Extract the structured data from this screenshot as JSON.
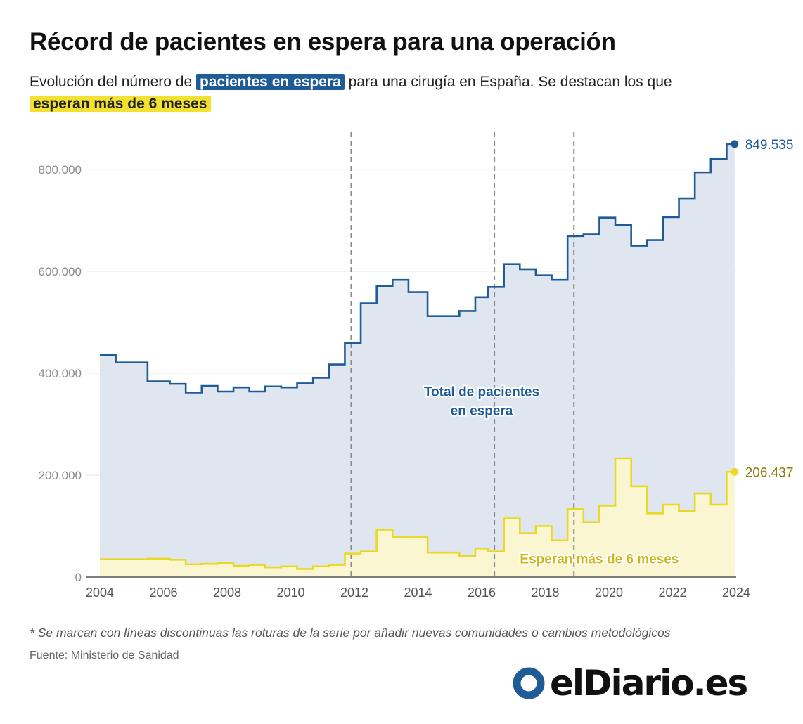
{
  "header": {
    "title": "Récord de pacientes en espera para una operación",
    "subtitle_pre": "Evolución del número de ",
    "subtitle_hl_blue": "pacientes en espera",
    "subtitle_mid": " para una cirugía en España. Se destacan los que ",
    "subtitle_hl_yellow": "esperan más de 6 meses"
  },
  "footer": {
    "footnote": "* Se marcan con líneas discontinuas las roturas de la serie por añadir nuevas comunidades o cambios metodológicos",
    "source": "Fuente: Ministerio de Sanidad",
    "logo_text": "elDiario.es"
  },
  "colors": {
    "blue": "#1f5c97",
    "blue_fill": "#dfe6f0",
    "yellow": "#ebd826",
    "yellow_fill": "#fbf6d2",
    "yellow_label": "#8a7d0a"
  },
  "chart_data": {
    "type": "area",
    "step": true,
    "title": "Récord de pacientes en espera para una operación",
    "xlim": [
      2004,
      2024
    ],
    "ylim": [
      0,
      870000
    ],
    "y_ticks": [
      0,
      200000,
      400000,
      600000,
      800000
    ],
    "y_tick_labels": [
      "0",
      "200.000",
      "400.000",
      "600.000",
      "800.000"
    ],
    "x_ticks": [
      2004,
      2006,
      2008,
      2010,
      2012,
      2014,
      2016,
      2018,
      2020,
      2022,
      2024
    ],
    "x_tick_labels": [
      "2004",
      "2006",
      "2008",
      "2010",
      "2012",
      "2014",
      "2016",
      "2018",
      "2020",
      "2022",
      "2024"
    ],
    "grid": "horizontal",
    "series_breaks": [
      2011.9,
      2016.4,
      2018.9
    ],
    "series": [
      {
        "name": "Total de pacientes en espera",
        "label_lines": [
          "Total de pacientes",
          "en espera"
        ],
        "label_at": [
          2016.0,
          355000
        ],
        "end_label": "849.535",
        "points": [
          [
            2004,
            436000
          ],
          [
            2004.5,
            421000
          ],
          [
            2005.5,
            384000
          ],
          [
            2006.2,
            379000
          ],
          [
            2006.7,
            362000
          ],
          [
            2007.2,
            375000
          ],
          [
            2007.7,
            364000
          ],
          [
            2008.2,
            372000
          ],
          [
            2008.7,
            364000
          ],
          [
            2009.2,
            374000
          ],
          [
            2009.7,
            372000
          ],
          [
            2010.2,
            380000
          ],
          [
            2010.7,
            391000
          ],
          [
            2011.2,
            417000
          ],
          [
            2011.7,
            459000
          ],
          [
            2012.2,
            537000
          ],
          [
            2012.7,
            571000
          ],
          [
            2013.2,
            583000
          ],
          [
            2013.7,
            559000
          ],
          [
            2014.3,
            512000
          ],
          [
            2015.3,
            522000
          ],
          [
            2015.8,
            549000
          ],
          [
            2016.2,
            569000
          ],
          [
            2016.7,
            614000
          ],
          [
            2017.2,
            604000
          ],
          [
            2017.7,
            592000
          ],
          [
            2018.2,
            583000
          ],
          [
            2018.7,
            669000
          ],
          [
            2019.2,
            672000
          ],
          [
            2019.7,
            705000
          ],
          [
            2020.2,
            691000
          ],
          [
            2020.7,
            650000
          ],
          [
            2021.2,
            661000
          ],
          [
            2021.7,
            706000
          ],
          [
            2022.2,
            743000
          ],
          [
            2022.7,
            794000
          ],
          [
            2023.2,
            820000
          ],
          [
            2023.7,
            849535
          ],
          [
            2023.95,
            849535
          ]
        ]
      },
      {
        "name": "Esperan más de 6 meses",
        "label_lines": [
          "Esperan más de 6 meses"
        ],
        "label_at": [
          2019.7,
          27000
        ],
        "end_label": "206.437",
        "points": [
          [
            2004,
            35000
          ],
          [
            2004.5,
            35000
          ],
          [
            2005.5,
            36000
          ],
          [
            2006.2,
            34000
          ],
          [
            2006.7,
            25000
          ],
          [
            2007.2,
            26000
          ],
          [
            2007.7,
            28000
          ],
          [
            2008.2,
            22000
          ],
          [
            2008.7,
            24000
          ],
          [
            2009.2,
            19000
          ],
          [
            2009.7,
            21000
          ],
          [
            2010.2,
            16000
          ],
          [
            2010.7,
            21000
          ],
          [
            2011.2,
            24000
          ],
          [
            2011.7,
            46000
          ],
          [
            2012.2,
            50000
          ],
          [
            2012.7,
            93000
          ],
          [
            2013.2,
            79000
          ],
          [
            2013.7,
            78000
          ],
          [
            2014.3,
            48000
          ],
          [
            2015.3,
            41000
          ],
          [
            2015.8,
            56000
          ],
          [
            2016.2,
            50000
          ],
          [
            2016.7,
            115000
          ],
          [
            2017.2,
            86000
          ],
          [
            2017.7,
            100000
          ],
          [
            2018.2,
            72000
          ],
          [
            2018.7,
            134000
          ],
          [
            2019.2,
            108000
          ],
          [
            2019.7,
            140000
          ],
          [
            2020.2,
            233000
          ],
          [
            2020.7,
            178000
          ],
          [
            2021.2,
            125000
          ],
          [
            2021.7,
            142000
          ],
          [
            2022.2,
            130000
          ],
          [
            2022.7,
            164000
          ],
          [
            2023.2,
            142000
          ],
          [
            2023.7,
            206437
          ],
          [
            2023.95,
            206437
          ]
        ]
      }
    ]
  }
}
